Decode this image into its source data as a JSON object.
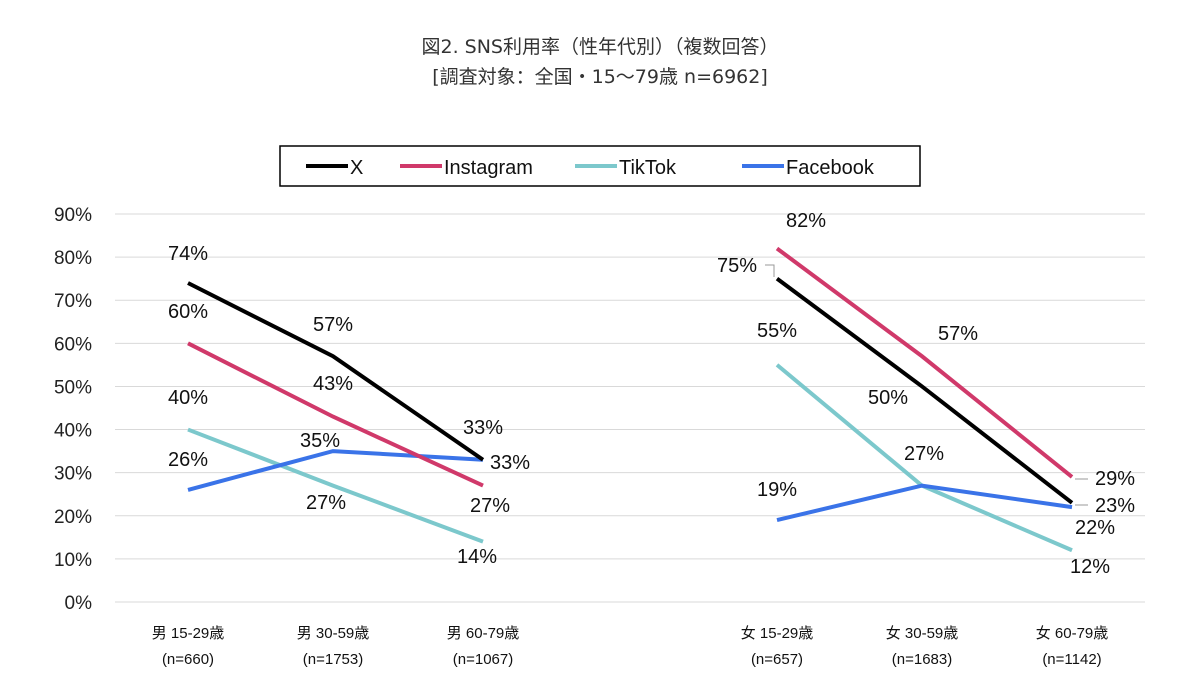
{
  "chart_data": {
    "type": "line",
    "title": "図2. SNS利用率（性年代別）（複数回答）",
    "subtitle": "[調査対象：全国・15〜79歳 n=6962]",
    "xlabel": "",
    "ylabel": "",
    "ylim": [
      0,
      90
    ],
    "yticks": [
      "0%",
      "10%",
      "20%",
      "30%",
      "40%",
      "50%",
      "60%",
      "70%",
      "80%",
      "90%"
    ],
    "grid": true,
    "legend_position": "top-center",
    "groups": [
      {
        "name": "male",
        "categories": [
          {
            "label": "男 15-29歳",
            "n": "(n=660)"
          },
          {
            "label": "男 30-59歳",
            "n": "(n=1753)"
          },
          {
            "label": "男 60-79歳",
            "n": "(n=1067)"
          }
        ]
      },
      {
        "name": "female",
        "categories": [
          {
            "label": "女 15-29歳",
            "n": "(n=657)"
          },
          {
            "label": "女 30-59歳",
            "n": "(n=1683)"
          },
          {
            "label": "女 60-79歳",
            "n": "(n=1142)"
          }
        ]
      }
    ],
    "series": [
      {
        "name": "X",
        "color": "#000000",
        "male": [
          74,
          57,
          33
        ],
        "female": [
          75,
          50,
          23
        ]
      },
      {
        "name": "Instagram",
        "color": "#d0396a",
        "male": [
          60,
          43,
          27
        ],
        "female": [
          82,
          57,
          29
        ]
      },
      {
        "name": "TikTok",
        "color": "#7cc8cc",
        "male": [
          40,
          27,
          14
        ],
        "female": [
          55,
          27,
          12
        ]
      },
      {
        "name": "Facebook",
        "color": "#3a73e8",
        "male": [
          26,
          35,
          33
        ],
        "female": [
          19,
          27,
          22
        ]
      }
    ]
  }
}
